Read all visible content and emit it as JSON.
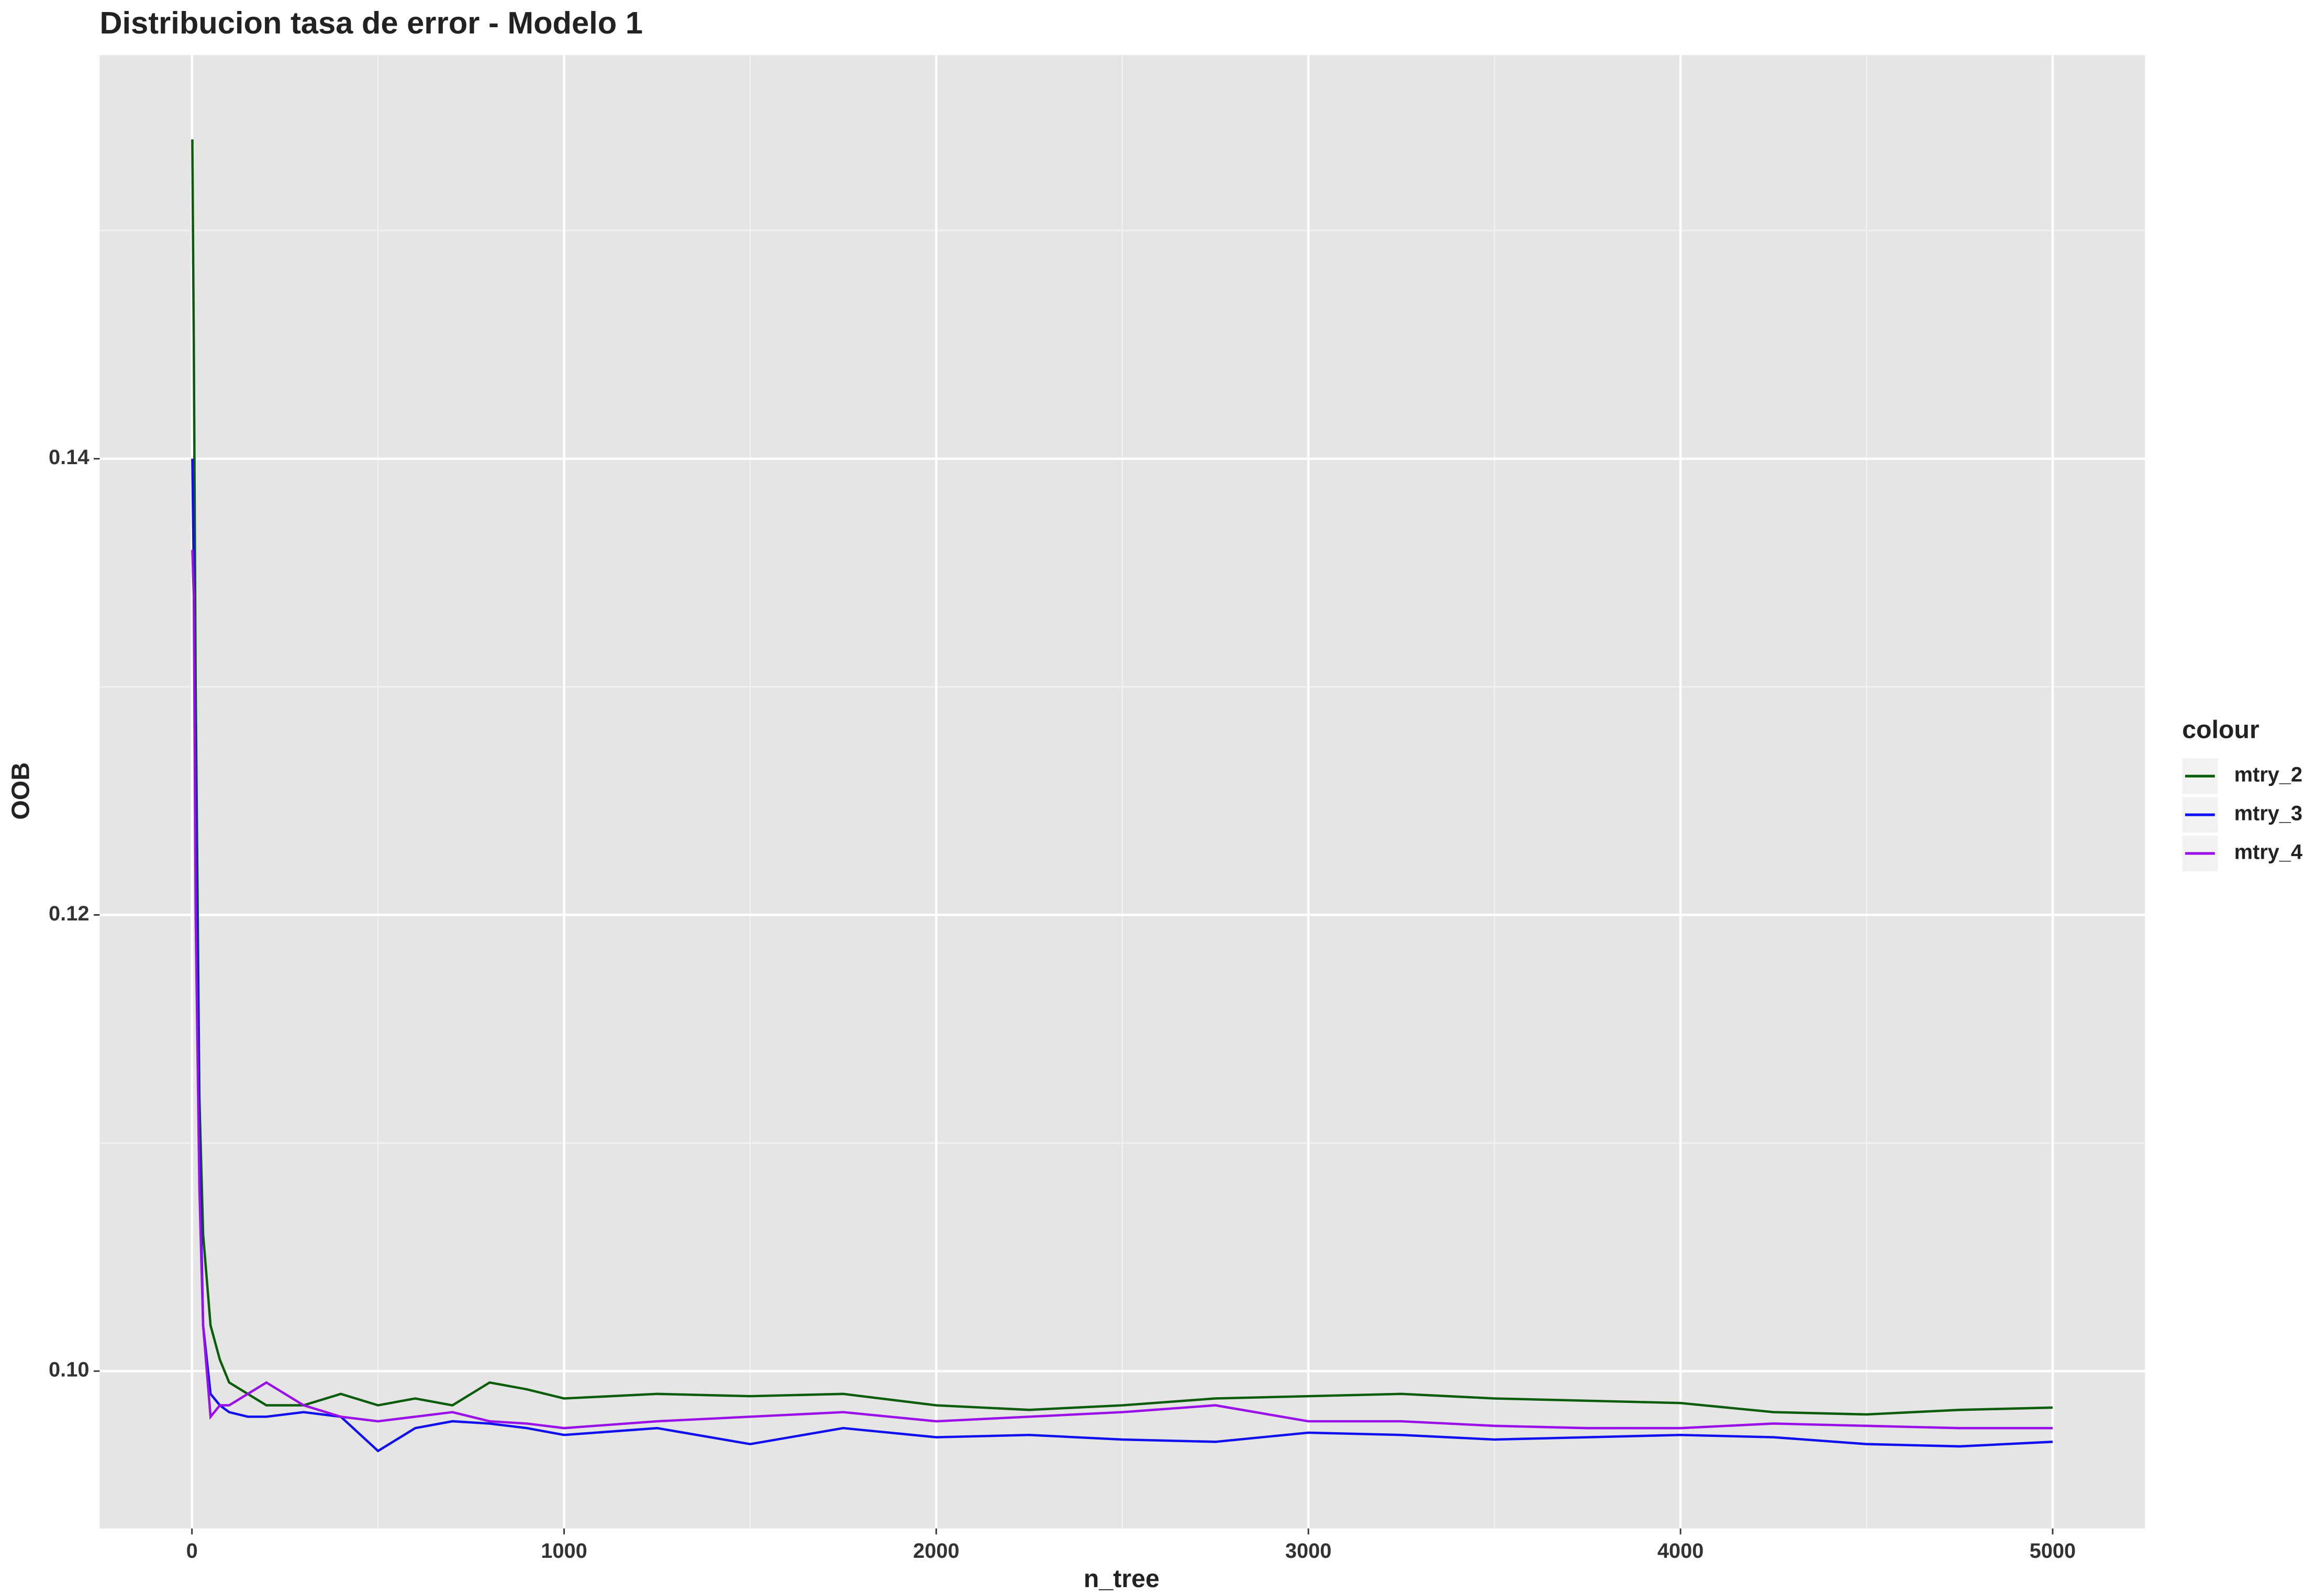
{
  "chart_data": {
    "type": "line",
    "title": "Distribucion tasa de error - Modelo 1",
    "x_label": "n_tree",
    "y_label": "OOB",
    "legend_title": "colour",
    "legend_position": "right",
    "grid": true,
    "minor_grid": true,
    "xlim": [
      -248,
      5248
    ],
    "ylim": [
      0.0931,
      0.1577
    ],
    "xticks": [
      0,
      1000,
      2000,
      3000,
      4000,
      5000
    ],
    "yticks": [
      {
        "value": 0.1,
        "label": "0.10"
      },
      0.12,
      0.14
    ],
    "x": [
      1,
      5,
      10,
      20,
      30,
      50,
      75,
      100,
      150,
      200,
      300,
      400,
      500,
      600,
      700,
      800,
      900,
      1000,
      1250,
      1500,
      1750,
      2000,
      2250,
      2500,
      2750,
      3000,
      3250,
      3500,
      3750,
      4000,
      4250,
      4500,
      4750,
      5000
    ],
    "series": [
      {
        "name": "mtry_2",
        "color": "#0b5d0b",
        "values": [
          0.154,
          0.145,
          0.13,
          0.112,
          0.106,
          0.102,
          0.1005,
          0.0995,
          0.099,
          0.0985,
          0.0985,
          0.099,
          0.0985,
          0.0988,
          0.0985,
          0.0995,
          0.0992,
          0.0988,
          0.099,
          0.0989,
          0.099,
          0.0985,
          0.0983,
          0.0985,
          0.0988,
          0.0989,
          0.099,
          0.0988,
          0.0987,
          0.0986,
          0.0982,
          0.0981,
          0.0983,
          0.0984
        ]
      },
      {
        "name": "mtry_3",
        "color": "#1010f0",
        "values": [
          0.14,
          0.135,
          0.125,
          0.11,
          0.102,
          0.099,
          0.0985,
          0.0982,
          0.098,
          0.098,
          0.0982,
          0.098,
          0.0965,
          0.0975,
          0.0978,
          0.0977,
          0.0975,
          0.0972,
          0.0975,
          0.0968,
          0.0975,
          0.0971,
          0.0972,
          0.097,
          0.0969,
          0.0973,
          0.0972,
          0.097,
          0.0971,
          0.0972,
          0.0971,
          0.0968,
          0.0967,
          0.0969
        ]
      },
      {
        "name": "mtry_4",
        "color": "#9a10e8",
        "values": [
          0.136,
          0.134,
          0.12,
          0.108,
          0.102,
          0.098,
          0.0985,
          0.0985,
          0.099,
          0.0995,
          0.0985,
          0.098,
          0.0978,
          0.098,
          0.0982,
          0.0978,
          0.0977,
          0.0975,
          0.0978,
          0.098,
          0.0982,
          0.0978,
          0.098,
          0.0982,
          0.0985,
          0.0978,
          0.0978,
          0.0976,
          0.0975,
          0.0975,
          0.0977,
          0.0976,
          0.0975,
          0.0975
        ]
      }
    ]
  }
}
